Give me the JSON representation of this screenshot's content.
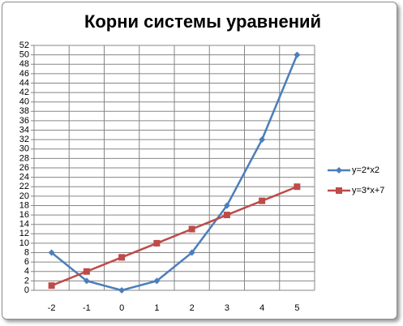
{
  "chart_data": {
    "type": "line",
    "title": "Корни системы уравнений",
    "categories": [
      -2,
      -1,
      0,
      1,
      2,
      3,
      4,
      5
    ],
    "series": [
      {
        "name": "y=2*x2",
        "color": "#4a7ebb",
        "marker": "diamond",
        "values": [
          8,
          2,
          0,
          2,
          8,
          18,
          32,
          50
        ]
      },
      {
        "name": "y=3*x+7",
        "color": "#be4b48",
        "marker": "square",
        "values": [
          1,
          4,
          7,
          10,
          13,
          16,
          19,
          22
        ]
      }
    ],
    "ylim": [
      0,
      52
    ],
    "yticks": [
      0,
      2,
      4,
      6,
      8,
      10,
      12,
      14,
      16,
      18,
      20,
      22,
      24,
      26,
      28,
      30,
      32,
      34,
      36,
      38,
      40,
      42,
      44,
      46,
      48,
      50,
      52
    ],
    "grid": true,
    "legend": "right"
  }
}
